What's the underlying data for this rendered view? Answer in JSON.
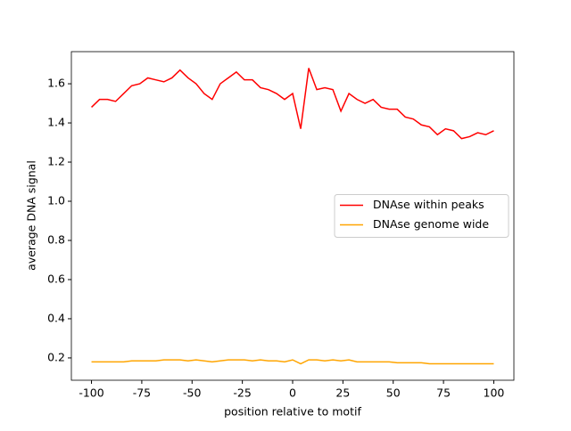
{
  "chart_data": {
    "type": "line",
    "xlabel": "position relative to motif",
    "ylabel": "average DNA signal",
    "x": [
      -100,
      -96,
      -92,
      -88,
      -84,
      -80,
      -76,
      -72,
      -68,
      -64,
      -60,
      -56,
      -52,
      -48,
      -44,
      -40,
      -36,
      -32,
      -28,
      -24,
      -20,
      -16,
      -12,
      -8,
      -4,
      0,
      4,
      8,
      12,
      16,
      20,
      24,
      28,
      32,
      36,
      40,
      44,
      48,
      52,
      56,
      60,
      64,
      68,
      72,
      76,
      80,
      84,
      88,
      92,
      96,
      100
    ],
    "series": [
      {
        "name": "DNAse within peaks",
        "color": "#ff0000",
        "values": [
          1.48,
          1.52,
          1.52,
          1.51,
          1.55,
          1.59,
          1.6,
          1.63,
          1.62,
          1.61,
          1.63,
          1.67,
          1.63,
          1.6,
          1.55,
          1.52,
          1.6,
          1.63,
          1.66,
          1.62,
          1.62,
          1.58,
          1.57,
          1.55,
          1.52,
          1.55,
          1.37,
          1.68,
          1.57,
          1.58,
          1.57,
          1.46,
          1.55,
          1.52,
          1.5,
          1.52,
          1.48,
          1.47,
          1.47,
          1.43,
          1.42,
          1.39,
          1.38,
          1.34,
          1.37,
          1.36,
          1.32,
          1.33,
          1.35,
          1.34,
          1.36
        ]
      },
      {
        "name": "DNAse genome wide",
        "color": "#ffa500",
        "values": [
          0.18,
          0.18,
          0.18,
          0.18,
          0.18,
          0.185,
          0.185,
          0.185,
          0.185,
          0.19,
          0.19,
          0.19,
          0.185,
          0.19,
          0.185,
          0.18,
          0.185,
          0.19,
          0.19,
          0.19,
          0.185,
          0.19,
          0.185,
          0.185,
          0.18,
          0.19,
          0.17,
          0.19,
          0.19,
          0.185,
          0.19,
          0.185,
          0.19,
          0.18,
          0.18,
          0.18,
          0.18,
          0.18,
          0.175,
          0.175,
          0.175,
          0.175,
          0.17,
          0.17,
          0.17,
          0.17,
          0.17,
          0.17,
          0.17,
          0.17,
          0.17
        ]
      }
    ],
    "xlim": [
      -110,
      110
    ],
    "ylim": [
      0.086,
      1.764
    ],
    "xticks": [
      -100,
      -75,
      -50,
      -25,
      0,
      25,
      50,
      75,
      100
    ],
    "yticks": [
      0.2,
      0.4,
      0.6,
      0.8,
      {
        "value": 1.0,
        "label": "1.0"
      },
      1.2,
      1.4,
      1.6
    ],
    "legend": "center right",
    "grid": false
  }
}
